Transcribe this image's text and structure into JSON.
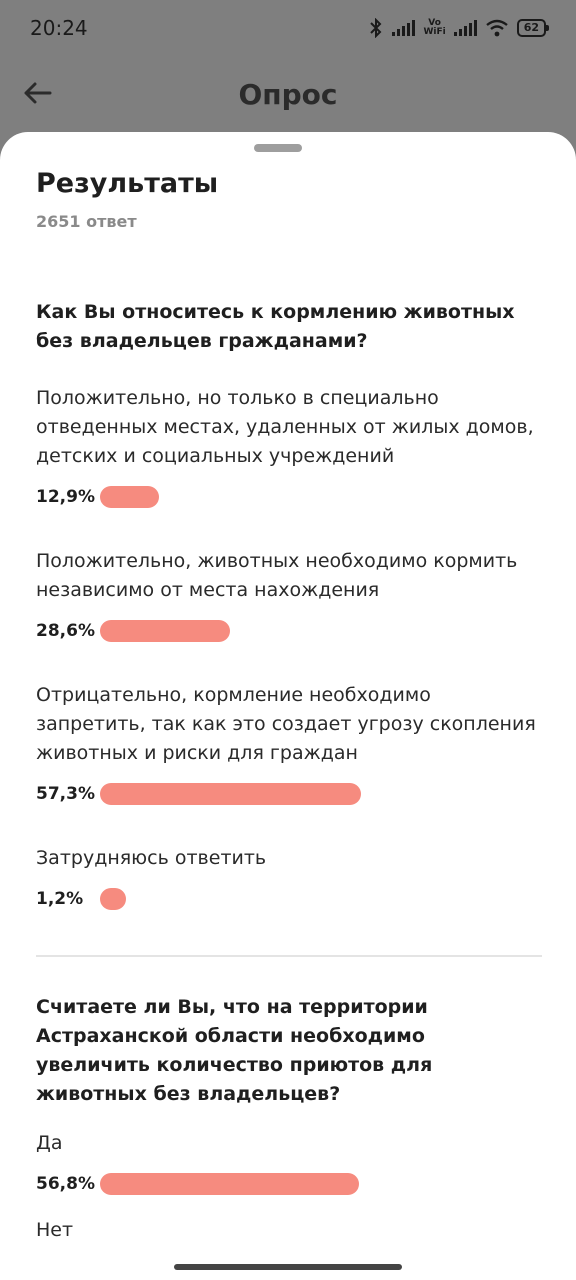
{
  "status_bar": {
    "time": "20:24",
    "battery": "62",
    "vowifi_top": "Vo",
    "vowifi_bottom": "WiFi"
  },
  "header": {
    "title": "Опрос",
    "back_icon": "arrow-left-icon"
  },
  "results": {
    "title": "Результаты",
    "answers_count": "2651 ответ"
  },
  "questions": [
    {
      "text": "Как Вы относитесь к кормлению животных без владельцев гражданами?",
      "options": [
        {
          "text": "Положительно, но только в специально отведенных местах, удаленных от жилых домов, детских и социальных учреждений",
          "percent_label": "12,9%",
          "percent": 12.9
        },
        {
          "text": "Положительно, животных необходимо кормить независимо от места нахождения",
          "percent_label": "28,6%",
          "percent": 28.6
        },
        {
          "text": "Отрицательно, кормление необходимо запретить, так как это создает угрозу скопления животных и риски для граждан",
          "percent_label": "57,3%",
          "percent": 57.3
        },
        {
          "text": "Затрудняюсь ответить",
          "percent_label": "1,2%",
          "percent": 1.2
        }
      ]
    },
    {
      "text": "Считаете ли Вы, что на территории Астраханской области необходимо увеличить количество приютов для животных без владельцев?",
      "options": [
        {
          "text": "Да",
          "percent_label": "56,8%",
          "percent": 56.8
        },
        {
          "text": "Нет"
        }
      ]
    }
  ],
  "colors": {
    "bar": "#f68b7f",
    "scrim": "#7f7f7f",
    "sheet": "#ffffff"
  }
}
